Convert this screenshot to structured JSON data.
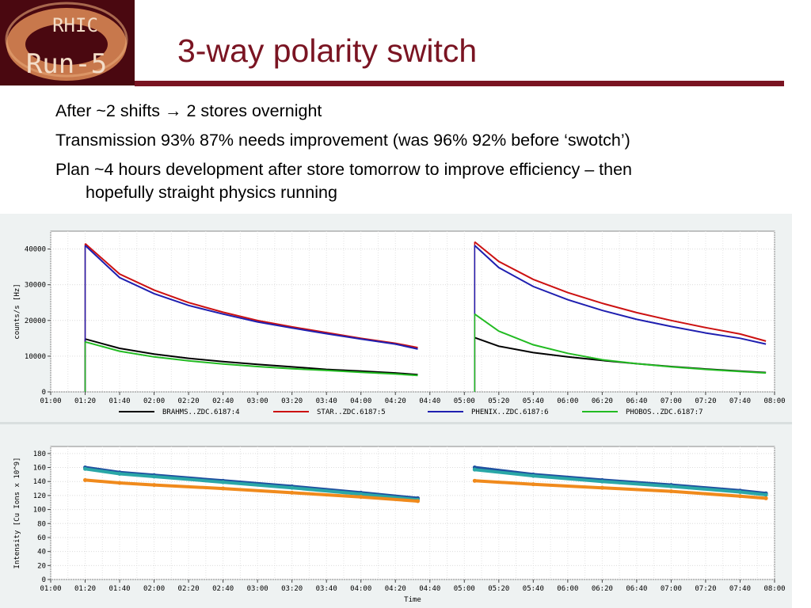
{
  "logo": {
    "top_text": "RHIC",
    "bottom_text": "Run-5",
    "colors": {
      "ring": "#d9885a",
      "background": "#4a0810",
      "text": "#f3ddc8"
    }
  },
  "slide": {
    "title": "3-way polarity switch",
    "title_color": "#7a1422",
    "bullets": [
      {
        "text": "After ~2 shifts ",
        "arrow": "→",
        "rest": " 2 stores overnight"
      },
      {
        "text": "Transmission 93% 87% needs improvement (was 96% 92% before ‘swotch’)"
      },
      {
        "text": "Plan ~4 hours development after store tomorrow to improve efficiency – then",
        "continuation": "hopefully straight physics running"
      }
    ]
  },
  "chart_data": [
    {
      "type": "line",
      "ylabel": "counts/s [Hz]",
      "ylim": [
        0,
        45000
      ],
      "yticks": [
        0,
        10000,
        20000,
        30000,
        40000
      ],
      "ytick_labels": [
        "0",
        "10000",
        "20000",
        "30000",
        "40000"
      ],
      "xtick_labels": [
        "01:00",
        "01:20",
        "01:40",
        "02:00",
        "02:20",
        "02:40",
        "03:00",
        "03:20",
        "03:40",
        "04:00",
        "04:20",
        "04:40",
        "05:00",
        "05:20",
        "05:40",
        "06:00",
        "06:20",
        "06:40",
        "07:00",
        "07:20",
        "07:40",
        "08:00"
      ],
      "grid": true,
      "legend_position": "bottom",
      "series": [
        {
          "name": "BRAHMS..ZDC.6187:4",
          "color": "#000000",
          "segments": [
            {
              "x": [
                "01:20",
                "01:40",
                "02:00",
                "02:20",
                "02:40",
                "03:00",
                "03:20",
                "03:40",
                "04:00",
                "04:20",
                "04:33"
              ],
              "y": [
                14800,
                12200,
                10600,
                9400,
                8500,
                7700,
                7000,
                6300,
                5800,
                5300,
                4800
              ]
            },
            {
              "x": [
                "05:06",
                "05:20",
                "05:40",
                "06:00",
                "06:20",
                "06:40",
                "07:00",
                "07:20",
                "07:40",
                "07:55"
              ],
              "y": [
                15200,
                12800,
                11000,
                9800,
                8800,
                7900,
                7100,
                6400,
                5800,
                5400
              ]
            }
          ]
        },
        {
          "name": "STAR..ZDC.6187:5",
          "color": "#cc1111",
          "segments": [
            {
              "x": [
                "01:20",
                "01:40",
                "02:00",
                "02:20",
                "02:40",
                "03:00",
                "03:20",
                "03:40",
                "04:00",
                "04:20",
                "04:33"
              ],
              "y": [
                41500,
                33000,
                28500,
                25000,
                22300,
                20000,
                18200,
                16600,
                15000,
                13600,
                12400
              ]
            },
            {
              "x": [
                "05:06",
                "05:20",
                "05:40",
                "06:00",
                "06:20",
                "06:40",
                "07:00",
                "07:20",
                "07:40",
                "07:55"
              ],
              "y": [
                42000,
                36500,
                31500,
                27800,
                24800,
                22200,
                20000,
                18000,
                16200,
                14200
              ]
            }
          ]
        },
        {
          "name": "PHENIX..ZDC.6187:6",
          "color": "#1f1fb0",
          "segments": [
            {
              "x": [
                "01:20",
                "01:40",
                "02:00",
                "02:20",
                "02:40",
                "03:00",
                "03:20",
                "03:40",
                "04:00",
                "04:20",
                "04:33"
              ],
              "y": [
                41000,
                32000,
                27500,
                24200,
                21800,
                19600,
                17900,
                16300,
                14800,
                13400,
                12000
              ]
            },
            {
              "x": [
                "05:06",
                "05:20",
                "05:40",
                "06:00",
                "06:20",
                "06:40",
                "07:00",
                "07:20",
                "07:40",
                "07:55"
              ],
              "y": [
                41000,
                34800,
                29500,
                25800,
                22800,
                20300,
                18300,
                16500,
                15000,
                13400
              ]
            }
          ]
        },
        {
          "name": "PHOBOS..ZDC.6187:7",
          "color": "#22bb22",
          "segments": [
            {
              "x": [
                "01:20",
                "01:40",
                "02:00",
                "02:20",
                "02:40",
                "03:00",
                "03:20",
                "03:40",
                "04:00",
                "04:20",
                "04:33"
              ],
              "y": [
                14000,
                11400,
                9800,
                8700,
                7800,
                7100,
                6500,
                6000,
                5500,
                5000,
                4600
              ]
            },
            {
              "x": [
                "05:06",
                "05:20",
                "05:40",
                "06:00",
                "06:20",
                "06:40",
                "07:00",
                "07:20",
                "07:40",
                "07:55"
              ],
              "y": [
                21800,
                17000,
                13200,
                10800,
                9000,
                7900,
                7000,
                6300,
                5700,
                5300
              ]
            }
          ]
        }
      ]
    },
    {
      "type": "scatter",
      "xlabel": "Time",
      "ylabel": "Intensity [Cu Ions x 10^9]",
      "ylim": [
        0,
        190
      ],
      "yticks": [
        0,
        20,
        40,
        60,
        80,
        100,
        120,
        140,
        160,
        180
      ],
      "ytick_labels": [
        "0",
        "20",
        "40",
        "60",
        "80",
        "100",
        "120",
        "140",
        "160",
        "180"
      ],
      "xtick_labels": [
        "01:00",
        "01:20",
        "01:40",
        "02:00",
        "02:20",
        "02:40",
        "03:00",
        "03:20",
        "03:40",
        "04:00",
        "04:20",
        "04:40",
        "05:00",
        "05:20",
        "05:40",
        "06:00",
        "06:20",
        "06:40",
        "07:00",
        "07:20",
        "07:40",
        "08:00"
      ],
      "grid": true,
      "series": [
        {
          "color": "#1f4f9f",
          "segments": [
            {
              "x": [
                "01:20",
                "01:40",
                "02:00",
                "02:40",
                "03:20",
                "04:00",
                "04:33"
              ],
              "y": [
                160,
                153,
                149,
                141,
                133,
                124,
                116
              ]
            },
            {
              "x": [
                "05:06",
                "05:40",
                "06:20",
                "07:00",
                "07:40",
                "07:55"
              ],
              "y": [
                160,
                150,
                142,
                135,
                127,
                123
              ]
            }
          ]
        },
        {
          "color": "#2aa7a7",
          "segments": [
            {
              "x": [
                "01:20",
                "01:40",
                "02:00",
                "02:40",
                "03:20",
                "04:00",
                "04:33"
              ],
              "y": [
                158,
                151,
                147,
                139,
                131,
                122,
                114
              ]
            },
            {
              "x": [
                "05:06",
                "05:40",
                "06:20",
                "07:00",
                "07:40",
                "07:55"
              ],
              "y": [
                157,
                148,
                140,
                133,
                125,
                121
              ]
            }
          ]
        },
        {
          "color": "#f08a1c",
          "segments": [
            {
              "x": [
                "01:20",
                "01:40",
                "02:00",
                "02:40",
                "03:20",
                "04:00",
                "04:33"
              ],
              "y": [
                142,
                138,
                135,
                130,
                124,
                118,
                112
              ]
            },
            {
              "x": [
                "05:06",
                "05:40",
                "06:20",
                "07:00",
                "07:40",
                "07:55"
              ],
              "y": [
                141,
                136,
                131,
                126,
                119,
                116
              ]
            }
          ]
        }
      ]
    }
  ]
}
